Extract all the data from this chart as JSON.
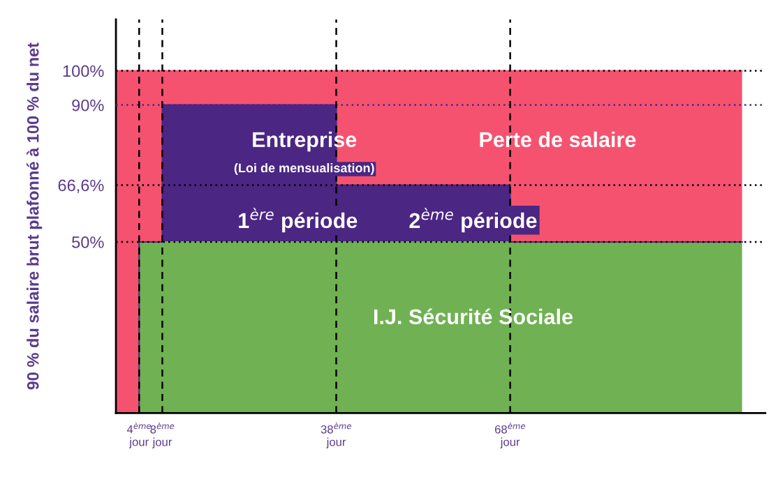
{
  "chart_data": {
    "type": "area",
    "stacked": true,
    "ylabel": "90 % du salaire brut plafonné à 100 % du net",
    "x": [
      0,
      4,
      4,
      8,
      8,
      38,
      38,
      68,
      68,
      108
    ],
    "series": [
      {
        "name": "I.J. Sécurité Sociale",
        "color": "#70b153",
        "values": [
          0,
          0,
          50,
          50,
          50,
          50,
          50,
          50,
          50,
          50
        ]
      },
      {
        "name": "Entreprise",
        "color": "#4b2683",
        "values": [
          0,
          0,
          0,
          0,
          40,
          40,
          16.6,
          16.6,
          0,
          0
        ]
      },
      {
        "name": "Perte de salaire",
        "color": "#f5526f",
        "values": [
          100,
          100,
          50,
          50,
          10,
          10,
          33.4,
          33.4,
          50,
          50
        ]
      }
    ],
    "xlim": [
      0,
      112
    ],
    "ylim": [
      0,
      115
    ],
    "xticks": [
      {
        "value": 4,
        "label": "4$^{ème}$\njour"
      },
      {
        "value": 8,
        "label": "8$^{ème}$\njour"
      },
      {
        "value": 38,
        "label": "38$^{ème}$\njour"
      },
      {
        "value": 68,
        "label": "68$^{ème}$\njour"
      }
    ],
    "yticks": [
      {
        "value": 50,
        "label": "50%"
      },
      {
        "value": 66.6,
        "label": "66,6%"
      },
      {
        "value": 90,
        "label": "90%"
      },
      {
        "value": 100,
        "label": "100%"
      }
    ],
    "ref_lines": [
      {
        "axis": "y",
        "value": 100,
        "color": "#000000",
        "line_style": "dotted"
      },
      {
        "axis": "y",
        "value": 90,
        "color": "#4b2683",
        "line_style": "dotted"
      },
      {
        "axis": "y",
        "value": 66.6,
        "color": "#000000",
        "line_style": "dotted"
      },
      {
        "axis": "y",
        "value": 50,
        "color": "#000000",
        "line_style": "dotted"
      },
      {
        "axis": "x",
        "value": 4,
        "color": "#000000",
        "line_style": "dashed"
      },
      {
        "axis": "x",
        "value": 8,
        "color": "#000000",
        "line_style": "dashed"
      },
      {
        "axis": "x",
        "value": 38,
        "color": "#000000",
        "line_style": "dashed"
      },
      {
        "axis": "x",
        "value": 68,
        "color": "#000000",
        "line_style": "dashed"
      }
    ],
    "annotations": [
      "(Loi de mensualisation)",
      "1$^{ère}$ période",
      "2$^{ème}$ période"
    ],
    "grid": false
  }
}
